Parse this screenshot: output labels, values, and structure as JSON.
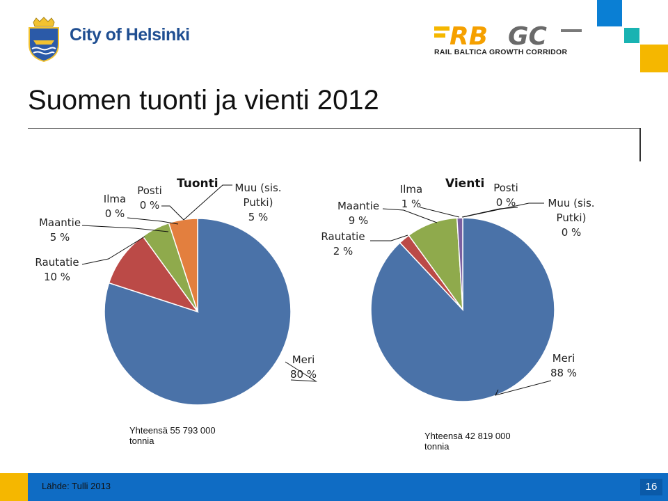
{
  "header": {
    "helsinki_logo_text": "City of Helsinki",
    "rbgc_logo_text": "RBGC",
    "rbgc_subtitle": "RAIL BALTICA GROWTH CORRIDOR"
  },
  "title": "Suomen tuonti ja vienti 2012",
  "colors": {
    "meri": "#4a72a8",
    "rautatie": "#bb4a47",
    "maantie": "#8faa4c",
    "ilma": "#7a5fa0",
    "posti": "#4bacc6",
    "muu": "#e37f3e",
    "footer": "#0f6cc4",
    "accent_blue": "#0a7fd4",
    "accent_yellow": "#f5b700",
    "accent_teal": "#19b3b2"
  },
  "chart_data": [
    {
      "type": "pie",
      "title": "Tuonti",
      "series": [
        {
          "name": "Meri",
          "value": 80,
          "label": "80 %"
        },
        {
          "name": "Rautatie",
          "value": 10,
          "label": "10 %"
        },
        {
          "name": "Maantie",
          "value": 5,
          "label": "5 %"
        },
        {
          "name": "Ilma",
          "value": 0,
          "label": "0 %"
        },
        {
          "name": "Posti",
          "value": 0,
          "label": "0 %"
        },
        {
          "name": "Muu (sis. Putki)",
          "value": 5,
          "label": "5 %"
        }
      ],
      "total": "Yhteensä 55 793 000 tonnia"
    },
    {
      "type": "pie",
      "title": "Vienti",
      "series": [
        {
          "name": "Meri",
          "value": 88,
          "label": "88 %"
        },
        {
          "name": "Rautatie",
          "value": 2,
          "label": "2 %"
        },
        {
          "name": "Maantie",
          "value": 9,
          "label": "9 %"
        },
        {
          "name": "Ilma",
          "value": 1,
          "label": "1 %"
        },
        {
          "name": "Posti",
          "value": 0,
          "label": "0 %"
        },
        {
          "name": "Muu (sis. Putki)",
          "value": 0,
          "label": "0 %"
        }
      ],
      "total": "Yhteensä 42 819 000 tonnia"
    }
  ],
  "labels": {
    "tuonti": {
      "maantie_name": "Maantie",
      "maantie_val": "5 %",
      "rautatie_name": "Rautatie",
      "rautatie_val": "10 %",
      "ilma_name": "Ilma",
      "ilma_val": "0 %",
      "posti_name": "Posti",
      "posti_val": "0 %",
      "muu_name1": "Muu (sis.",
      "muu_name2": "Putki)",
      "muu_val": "5 %",
      "meri_name": "Meri",
      "meri_val": "80 %"
    },
    "vienti": {
      "maantie_name": "Maantie",
      "maantie_val": "9 %",
      "rautatie_name": "Rautatie",
      "rautatie_val": "2 %",
      "ilma_name": "Ilma",
      "ilma_val": "1 %",
      "posti_name": "Posti",
      "posti_val": "0 %",
      "muu_name1": "Muu (sis.",
      "muu_name2": "Putki)",
      "muu_val": "0 %",
      "meri_name": "Meri",
      "meri_val": "88 %"
    }
  },
  "totals": {
    "tuonti_line1": "Yhteensä 55 793 000",
    "tuonti_line2": "tonnia",
    "vienti_line1": "Yhteensä 42 819 000",
    "vienti_line2": "tonnia"
  },
  "footer": {
    "source": "Lähde: Tulli 2013",
    "page_number": "16"
  }
}
